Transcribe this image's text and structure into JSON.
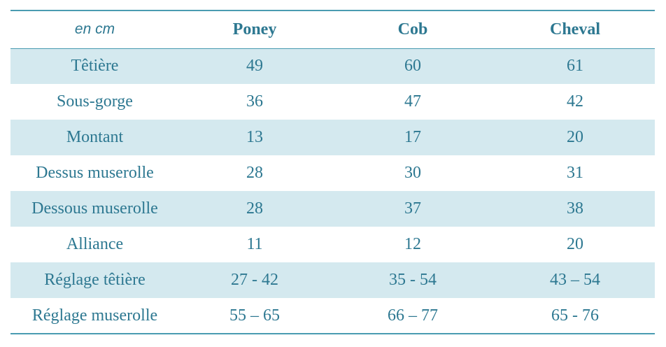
{
  "table": {
    "unit_label": "en cm",
    "columns": [
      "Poney",
      "Cob",
      "Cheval"
    ],
    "rows": [
      {
        "label": "Têtière",
        "values": [
          "49",
          "60",
          "61"
        ]
      },
      {
        "label": "Sous-gorge",
        "values": [
          "36",
          "47",
          "42"
        ]
      },
      {
        "label": "Montant",
        "values": [
          "13",
          "17",
          "20"
        ]
      },
      {
        "label": "Dessus muserolle",
        "values": [
          "28",
          "30",
          "31"
        ]
      },
      {
        "label": "Dessous muserolle",
        "values": [
          "28",
          "37",
          "38"
        ]
      },
      {
        "label": "Alliance",
        "values": [
          "11",
          "12",
          "20"
        ]
      },
      {
        "label": "Réglage têtière",
        "values": [
          "27 - 42",
          "35 - 54",
          "43 – 54"
        ]
      },
      {
        "label": "Réglage muserolle",
        "values": [
          "55 – 65",
          "66 – 77",
          "65 - 76"
        ]
      }
    ]
  },
  "colors": {
    "text": "#2d7891",
    "border": "#4a9bb1",
    "row_shade": "#d4e9ef"
  }
}
